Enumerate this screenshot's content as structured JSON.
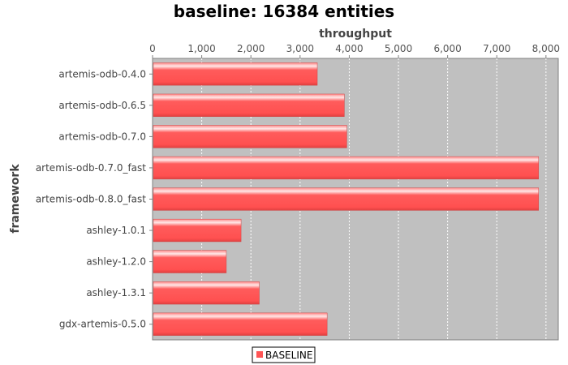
{
  "chart_data": {
    "type": "bar",
    "orientation": "horizontal",
    "title": "baseline: 16384 entities",
    "xlabel": "throughput",
    "ylabel": "framework",
    "categories": [
      "artemis-odb-0.4.0",
      "artemis-odb-0.6.5",
      "artemis-odb-0.7.0",
      "artemis-odb-0.7.0_fast",
      "artemis-odb-0.8.0_fast",
      "ashley-1.0.1",
      "ashley-1.2.0",
      "ashley-1.3.1",
      "gdx-artemis-0.5.0"
    ],
    "series": [
      {
        "name": "BASELINE",
        "color": "#ff5555",
        "values": [
          3350,
          3900,
          3950,
          7850,
          7850,
          1800,
          1500,
          2170,
          3550
        ]
      }
    ],
    "xlim": [
      0,
      8250
    ],
    "xticks": [
      0,
      1000,
      2000,
      3000,
      4000,
      5000,
      6000,
      7000,
      8000
    ],
    "xtick_labels": [
      "0",
      "1,000",
      "2,000",
      "3,000",
      "4,000",
      "5,000",
      "6,000",
      "7,000",
      "8,000"
    ],
    "x_axis_position": "top",
    "grid": true,
    "legend_position": "bottom",
    "plot_background": "#c0c0c0"
  }
}
